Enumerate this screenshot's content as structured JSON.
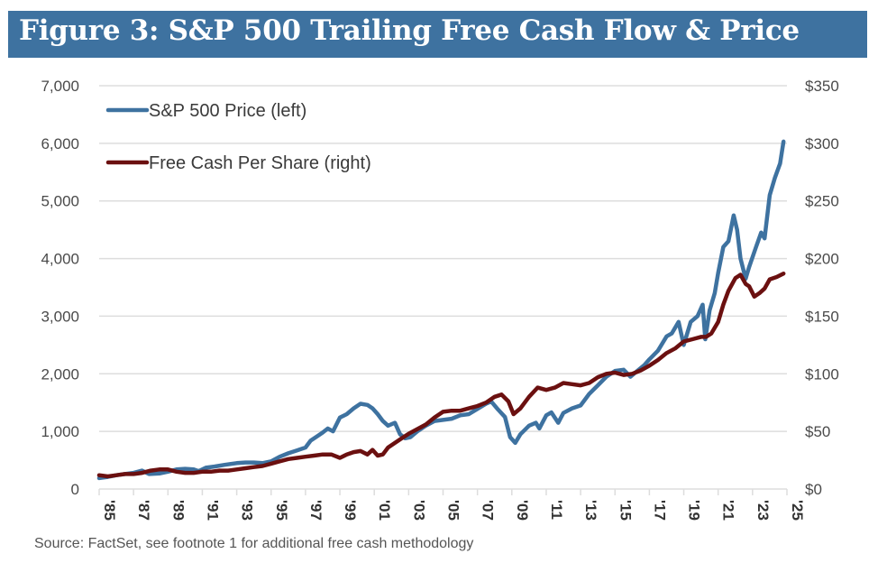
{
  "header": {
    "title": "Figure 3:  S&P 500 Trailing Free Cash Flow & Price"
  },
  "footer": {
    "source": "Source: FactSet, see footnote 1 for additional free cash methodology"
  },
  "colors": {
    "title_bar": "#3e72a0",
    "price_line": "#3e72a0",
    "fcf_line": "#6b1010",
    "grid": "#dddddd"
  },
  "chart_data": {
    "type": "line",
    "title": "S&P 500 Trailing Free Cash Flow & Price",
    "xlabel": "",
    "ylabel_left": "",
    "ylabel_right": "",
    "xlim": [
      1985,
      2025
    ],
    "ylim_left": [
      0,
      7000
    ],
    "ylim_right": [
      0,
      350
    ],
    "grid": true,
    "legend_position": "top-left",
    "left_ticks": [
      "0",
      "1,000",
      "2,000",
      "3,000",
      "4,000",
      "5,000",
      "6,000",
      "7,000"
    ],
    "left_tick_values": [
      0,
      1000,
      2000,
      3000,
      4000,
      5000,
      6000,
      7000
    ],
    "right_ticks": [
      "$0",
      "$50",
      "$100",
      "$150",
      "$200",
      "$250",
      "$300",
      "$350"
    ],
    "right_tick_values": [
      0,
      50,
      100,
      150,
      200,
      250,
      300,
      350
    ],
    "x_ticks": [
      "'85",
      "'87",
      "'89",
      "'91",
      "'93",
      "'95",
      "'97",
      "'99",
      "'01",
      "'03",
      "'05",
      "'07",
      "'09",
      "'11",
      "'13",
      "'15",
      "'17",
      "'19",
      "'21",
      "'23",
      "'25"
    ],
    "x_tick_values": [
      1985,
      1987,
      1989,
      1991,
      1993,
      1995,
      1997,
      1999,
      2001,
      2003,
      2005,
      2007,
      2009,
      2011,
      2013,
      2015,
      2017,
      2019,
      2021,
      2023,
      2025
    ],
    "series": [
      {
        "name": "S&P 500 Price (left)",
        "axis": "left",
        "color": "#3e72a0",
        "x": [
          1985.0,
          1985.5,
          1986.0,
          1986.5,
          1987.0,
          1987.5,
          1987.9,
          1988.5,
          1989.0,
          1989.5,
          1990.0,
          1990.5,
          1990.8,
          1991.2,
          1991.7,
          1992.3,
          1993.0,
          1993.5,
          1994.0,
          1994.5,
          1995.0,
          1995.5,
          1996.0,
          1996.5,
          1997.0,
          1997.3,
          1997.7,
          1998.0,
          1998.3,
          1998.6,
          1999.0,
          1999.4,
          1999.8,
          2000.2,
          2000.6,
          2000.9,
          2001.2,
          2001.5,
          2001.8,
          2002.2,
          2002.5,
          2002.8,
          2003.1,
          2003.5,
          2004.0,
          2004.5,
          2005.0,
          2005.5,
          2006.0,
          2006.5,
          2007.0,
          2007.5,
          2007.8,
          2008.2,
          2008.6,
          2008.9,
          2009.2,
          2009.5,
          2010.0,
          2010.4,
          2010.6,
          2011.0,
          2011.3,
          2011.7,
          2012.0,
          2012.5,
          2013.0,
          2013.5,
          2014.0,
          2014.5,
          2015.0,
          2015.5,
          2015.9,
          2016.3,
          2016.7,
          2017.0,
          2017.5,
          2018.0,
          2018.3,
          2018.7,
          2019.0,
          2019.4,
          2019.8,
          2020.1,
          2020.25,
          2020.5,
          2020.8,
          2021.0,
          2021.3,
          2021.6,
          2021.9,
          2022.1,
          2022.3,
          2022.6,
          2022.8,
          2023.2,
          2023.5,
          2023.7,
          2024.0,
          2024.3,
          2024.6,
          2024.8
        ],
        "values": [
          190,
          210,
          240,
          260,
          280,
          320,
          260,
          270,
          300,
          340,
          350,
          340,
          310,
          370,
          390,
          420,
          450,
          460,
          460,
          450,
          480,
          560,
          620,
          670,
          720,
          840,
          920,
          980,
          1050,
          1000,
          1240,
          1300,
          1400,
          1480,
          1460,
          1400,
          1300,
          1180,
          1100,
          1150,
          950,
          880,
          900,
          1000,
          1100,
          1180,
          1200,
          1220,
          1280,
          1300,
          1390,
          1480,
          1520,
          1380,
          1250,
          900,
          800,
          950,
          1100,
          1150,
          1050,
          1280,
          1330,
          1150,
          1320,
          1400,
          1450,
          1650,
          1800,
          1950,
          2050,
          2070,
          1950,
          2050,
          2150,
          2250,
          2400,
          2650,
          2700,
          2900,
          2500,
          2900,
          3000,
          3200,
          2600,
          3100,
          3400,
          3750,
          4200,
          4300,
          4750,
          4500,
          4000,
          3650,
          3850,
          4200,
          4450,
          4350,
          5100,
          5400,
          5650,
          6030
        ]
      },
      {
        "name": "Free Cash Per Share (right)",
        "axis": "right",
        "color": "#6b1010",
        "x": [
          1985.0,
          1985.5,
          1986.0,
          1986.5,
          1987.0,
          1987.5,
          1988.0,
          1988.5,
          1989.0,
          1989.5,
          1990.0,
          1990.5,
          1991.0,
          1991.5,
          1992.0,
          1992.5,
          1993.0,
          1993.5,
          1994.0,
          1994.5,
          1995.0,
          1995.5,
          1996.0,
          1996.5,
          1997.0,
          1997.5,
          1998.0,
          1998.5,
          1999.0,
          1999.4,
          1999.8,
          2000.2,
          2000.6,
          2000.9,
          2001.2,
          2001.5,
          2001.8,
          2002.2,
          2002.6,
          2003.0,
          2003.5,
          2004.0,
          2004.5,
          2005.0,
          2005.5,
          2006.0,
          2006.5,
          2007.0,
          2007.5,
          2008.0,
          2008.4,
          2008.8,
          2009.1,
          2009.5,
          2010.0,
          2010.5,
          2011.0,
          2011.5,
          2012.0,
          2012.5,
          2013.0,
          2013.5,
          2014.0,
          2014.5,
          2015.0,
          2015.5,
          2016.0,
          2016.5,
          2017.0,
          2017.5,
          2018.0,
          2018.5,
          2019.0,
          2019.5,
          2020.0,
          2020.3,
          2020.6,
          2021.0,
          2021.3,
          2021.6,
          2022.0,
          2022.3,
          2022.6,
          2022.8,
          2023.1,
          2023.4,
          2023.7,
          2024.0,
          2024.4,
          2024.8
        ],
        "values": [
          12,
          11,
          12,
          13,
          13,
          14,
          16,
          17,
          17,
          15,
          14,
          14,
          15,
          15,
          16,
          16,
          17,
          18,
          19,
          20,
          22,
          24,
          26,
          27,
          28,
          29,
          30,
          30,
          27,
          30,
          32,
          33,
          30,
          34,
          29,
          30,
          36,
          40,
          44,
          48,
          52,
          56,
          62,
          67,
          68,
          68,
          70,
          72,
          75,
          80,
          82,
          76,
          65,
          70,
          80,
          88,
          86,
          88,
          92,
          91,
          90,
          92,
          97,
          100,
          101,
          99,
          100,
          103,
          107,
          112,
          118,
          122,
          128,
          130,
          132,
          132,
          135,
          145,
          160,
          172,
          183,
          186,
          178,
          176,
          167,
          170,
          174,
          182,
          184,
          187
        ]
      }
    ]
  }
}
